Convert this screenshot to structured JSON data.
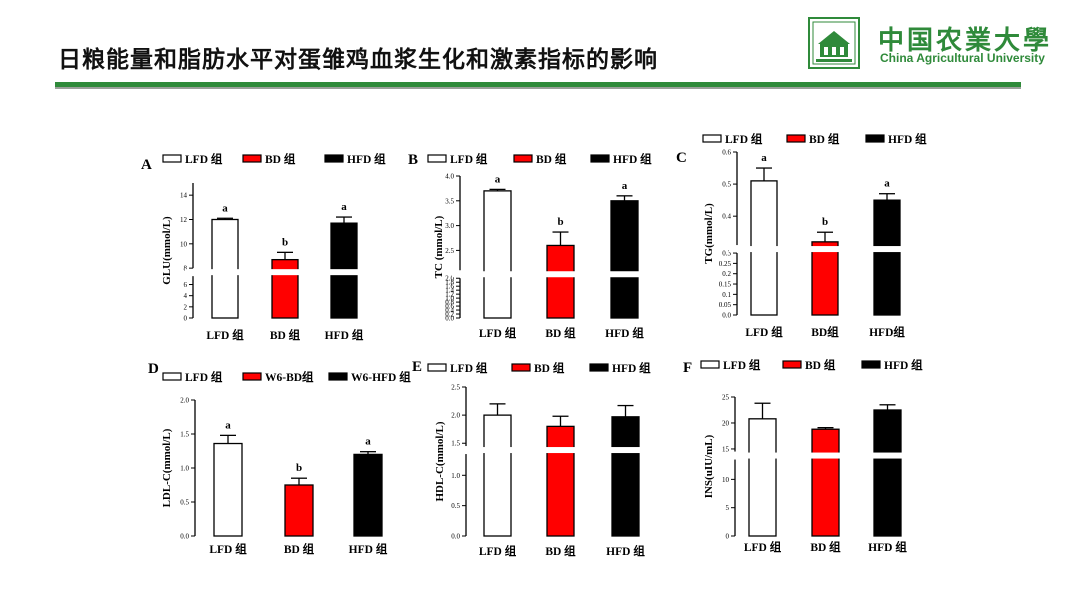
{
  "header": {
    "title": "日粮能量和脂肪水平对蛋雏鸡血浆生化和激素指标的影响",
    "university_cn": "中国农業大學",
    "university_en": "China Agricultural University",
    "logo_icon": "cau-seal-icon",
    "accent_color": "#2f8a3a"
  },
  "chart_data": [
    {
      "type": "bar",
      "panel": "A",
      "ylabel": "GLU(mmol/L)",
      "categories": [
        "LFD 组",
        "BD 组",
        "HFD 组"
      ],
      "legend": [
        "LFD  组",
        "BD  组",
        "HFD  组"
      ],
      "values": [
        12.0,
        8.7,
        11.7
      ],
      "errors": [
        0.1,
        0.6,
        0.5
      ],
      "letters": [
        "a",
        "b",
        "a"
      ],
      "colors": [
        "#ffffff",
        "#ff0000",
        "#000000"
      ],
      "axis_break": [
        7.5,
        8.0
      ],
      "ylim": [
        0,
        15
      ],
      "ticks": [
        0,
        2,
        4,
        6,
        8,
        10,
        12,
        14
      ],
      "tick_labels": [
        "0",
        "2",
        "4",
        "6",
        "8",
        "10",
        "12",
        "14"
      ]
    },
    {
      "type": "bar",
      "panel": "B",
      "ylabel": "TC (mmol/L)",
      "categories": [
        "LFD 组",
        "BD 组",
        "HFD 组"
      ],
      "legend": [
        "LFD  组",
        "BD  组",
        "HFD  组"
      ],
      "values": [
        3.7,
        2.6,
        3.5
      ],
      "errors": [
        0.03,
        0.27,
        0.1
      ],
      "letters": [
        "a",
        "b",
        "a"
      ],
      "colors": [
        "#ffffff",
        "#ff0000",
        "#000000"
      ],
      "axis_break": [
        2.02,
        2.1
      ],
      "ylim": [
        0,
        4.0
      ],
      "ticks": [
        0,
        0.2,
        0.4,
        0.6,
        0.8,
        1.0,
        1.2,
        1.4,
        1.6,
        1.8,
        2.0,
        2.5,
        3.0,
        3.5,
        4.0
      ],
      "tick_labels": [
        "0.0",
        "0.2",
        "0.4",
        "0.6",
        "0.8",
        "1.0",
        "1.2",
        "1.4",
        "1.6",
        "1.8",
        "2.0",
        "2.5",
        "3.0",
        "3.5",
        "4.0"
      ]
    },
    {
      "type": "bar",
      "panel": "C",
      "ylabel": "TG(mmol/L)",
      "categories": [
        "LFD 组",
        "BD组",
        "HFD组"
      ],
      "legend": [
        "LFD  组",
        "BD 组",
        "HFD  组"
      ],
      "values": [
        0.51,
        0.32,
        0.45
      ],
      "errors": [
        0.04,
        0.03,
        0.02
      ],
      "letters": [
        "a",
        "b",
        "a"
      ],
      "colors": [
        "#ffffff",
        "#ff0000",
        "#000000"
      ],
      "axis_break": [
        0.3,
        0.31
      ],
      "ylim": [
        0,
        0.6
      ],
      "ticks": [
        0,
        0.05,
        0.1,
        0.15,
        0.2,
        0.25,
        0.3,
        0.4,
        0.5,
        0.6
      ],
      "tick_labels": [
        "0.0",
        "0.05",
        "0.1",
        "0.15",
        "0.2",
        "0.25",
        "0.3",
        "0.4",
        "0.5",
        "0.6"
      ]
    },
    {
      "type": "bar",
      "panel": "D",
      "ylabel": "LDL-C(mmol/L)",
      "categories": [
        "LFD  组",
        "BD 组",
        "HFD  组"
      ],
      "legend": [
        "LFD  组",
        "W6-BD组",
        "W6-HFD 组"
      ],
      "values": [
        1.36,
        0.75,
        1.2
      ],
      "errors": [
        0.12,
        0.1,
        0.04
      ],
      "letters": [
        "a",
        "b",
        "a"
      ],
      "colors": [
        "#ffffff",
        "#ff0000",
        "#000000"
      ],
      "ylim": [
        0,
        2.0
      ],
      "ticks": [
        0,
        0.5,
        1.0,
        1.5,
        2.0
      ],
      "tick_labels": [
        "0.0",
        "0.5",
        "1.0",
        "1.5",
        "2.0"
      ]
    },
    {
      "type": "bar",
      "panel": "E",
      "ylabel": "HDL-C(mmol/L)",
      "categories": [
        "LFD  组",
        "BD  组",
        "HFD  组"
      ],
      "legend": [
        "LFD  组",
        "BD 组",
        "HFD  组"
      ],
      "values": [
        2.0,
        1.8,
        1.97
      ],
      "errors": [
        0.2,
        0.18,
        0.2
      ],
      "letters": [
        "",
        "",
        ""
      ],
      "colors": [
        "#ffffff",
        "#ff0000",
        "#000000"
      ],
      "axis_break": [
        1.35,
        1.45
      ],
      "ylim": [
        0,
        2.5
      ],
      "ticks": [
        0,
        0.5,
        1.0,
        1.5,
        2.0,
        2.5
      ],
      "tick_labels": [
        "0.0",
        "0.5",
        "1.0",
        "1.5",
        "2.0",
        "2.5"
      ]
    },
    {
      "type": "bar",
      "panel": "F",
      "ylabel": "INS(uIU/mL)",
      "categories": [
        "LFD  组",
        "BD  组",
        "HFD  组"
      ],
      "legend": [
        "LFD  组",
        "BD  组",
        "HFD  组"
      ],
      "values": [
        20.8,
        18.8,
        22.5
      ],
      "errors": [
        3.0,
        0.3,
        1.0
      ],
      "letters": [
        "",
        "",
        ""
      ],
      "colors": [
        "#ffffff",
        "#ff0000",
        "#000000"
      ],
      "axis_break": [
        13.5,
        14.5
      ],
      "ylim": [
        0,
        25
      ],
      "ticks": [
        0,
        5,
        10,
        15,
        20,
        25
      ],
      "tick_labels": [
        "0",
        "5",
        "10",
        "15",
        "20",
        "25"
      ]
    }
  ]
}
